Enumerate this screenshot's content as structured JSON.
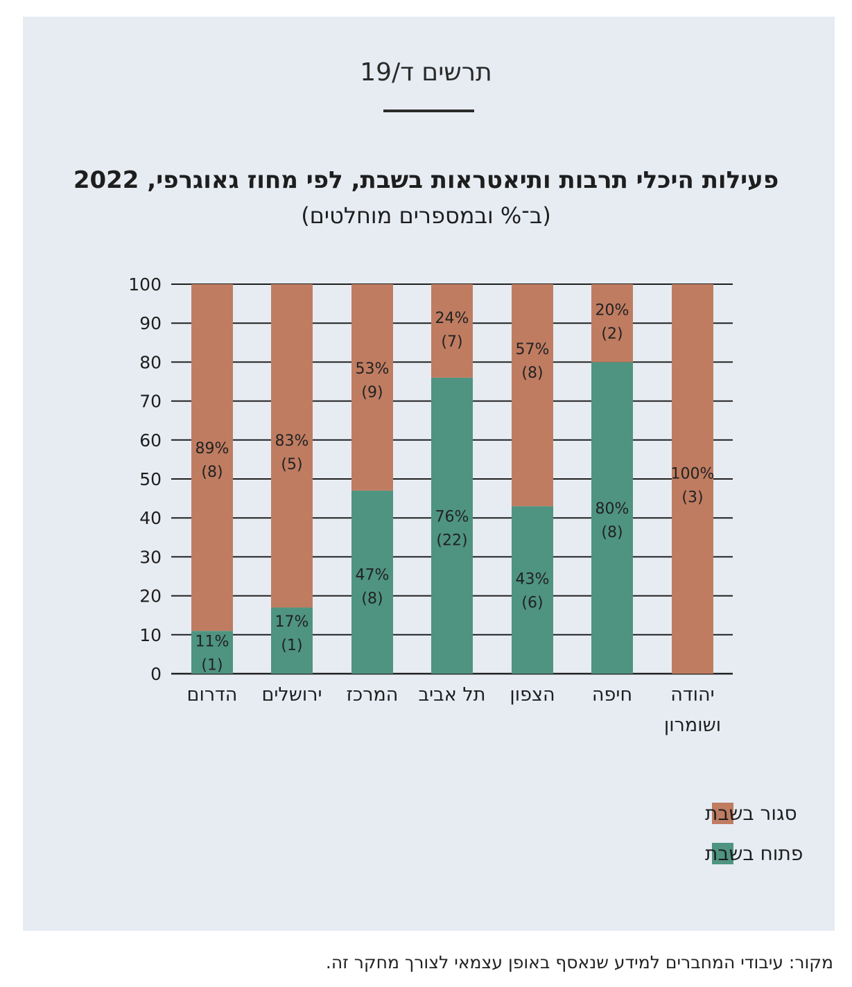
{
  "figure_label": "תרשים ד/19",
  "source_note": "מקור: עיבודי המחברים למידע שנאסף באופן עצמאי לצורך מחקר זה.",
  "colors": {
    "panel_background": "#e7ecf3",
    "closed": "#bf7c61",
    "open": "#4e9480",
    "grid": "#1e1e1e"
  },
  "chart_data": {
    "type": "bar",
    "stacked": true,
    "title": "פעילות היכלי תרבות ותיאטראות בשבת, לפי מחוז גאוגרפי, 2022",
    "subtitle": "(ב־% ובמספרים מוחלטים)",
    "categories": [
      "הדרום",
      "ירושלים",
      "המרכז",
      "תל אביב",
      "הצפון",
      "חיפה",
      "יהודה ושומרון"
    ],
    "category_lines": [
      [
        "הדרום"
      ],
      [
        "ירושלים"
      ],
      [
        "המרכז"
      ],
      [
        "תל אביב"
      ],
      [
        "הצפון"
      ],
      [
        "חיפה"
      ],
      [
        "יהודה",
        "ושומרון"
      ]
    ],
    "ylim": [
      0,
      100
    ],
    "yticks": [
      0,
      10,
      20,
      30,
      40,
      50,
      60,
      70,
      80,
      90,
      100
    ],
    "grid": true,
    "legend_position": "bottom-right",
    "series": [
      {
        "name": "פתוח בשבת",
        "color": "#4e9480",
        "values": [
          11,
          17,
          47,
          76,
          43,
          80,
          0
        ],
        "counts": [
          1,
          1,
          8,
          22,
          6,
          8,
          0
        ],
        "value_labels": [
          "11%",
          "17%",
          "47%",
          "76%",
          "43%",
          "80%",
          ""
        ],
        "count_labels": [
          "(1)",
          "(1)",
          "(8)",
          "(22)",
          "(6)",
          "(8)",
          ""
        ]
      },
      {
        "name": "סגור בשבת",
        "color": "#bf7c61",
        "values": [
          89,
          83,
          53,
          24,
          57,
          20,
          100
        ],
        "counts": [
          8,
          5,
          9,
          7,
          8,
          2,
          3
        ],
        "value_labels": [
          "89%",
          "83%",
          "53%",
          "24%",
          "57%",
          "20%",
          "100%"
        ],
        "count_labels": [
          "(8)",
          "(5)",
          "(9)",
          "(7)",
          "(8)",
          "(2)",
          "(3)"
        ]
      }
    ],
    "legend": [
      "סגור בשבת",
      "פתוח בשבת"
    ]
  }
}
